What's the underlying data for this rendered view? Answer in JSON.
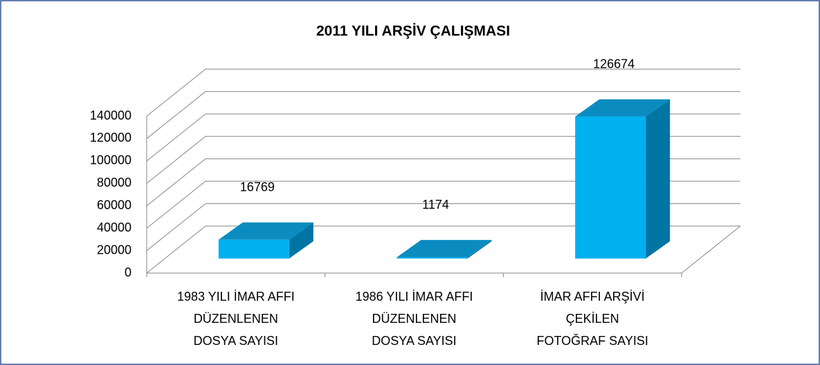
{
  "chart_data": {
    "type": "bar3d",
    "title": "2011 YILI ARŞİV ÇALIŞMASI",
    "categories": [
      [
        "1983 YILI İMAR AFFI",
        "DÜZENLENEN",
        "DOSYA SAYISI"
      ],
      [
        "1986 YILI İMAR AFFI",
        "DÜZENLENEN",
        "DOSYA SAYISI"
      ],
      [
        "İMAR AFFI ARŞİVİ",
        "ÇEKİLEN",
        "FOTOĞRAF SAYISI"
      ]
    ],
    "values": [
      16769,
      1174,
      126674
    ],
    "color": "#00b0f0",
    "ylim": [
      0,
      140000
    ],
    "yticks": [
      0,
      20000,
      40000,
      60000,
      80000,
      100000,
      120000,
      140000
    ],
    "grid": true
  }
}
